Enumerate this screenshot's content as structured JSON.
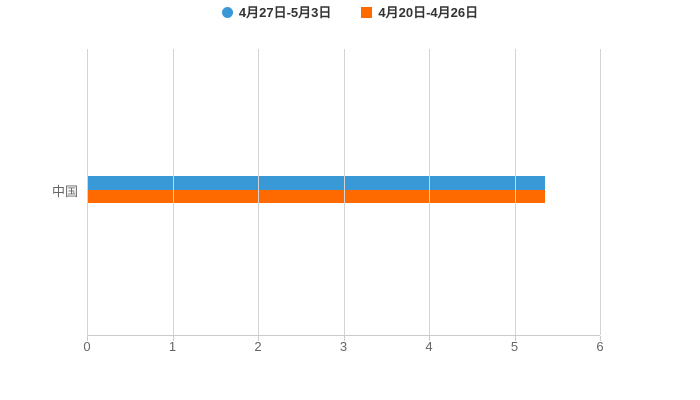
{
  "chart_data": {
    "type": "bar",
    "orientation": "horizontal",
    "title": "",
    "xlabel": "",
    "ylabel": "",
    "categories": [
      "中国"
    ],
    "series": [
      {
        "name": "4月27日-5月3日",
        "color": "#3899d6",
        "legend_marker": "circle",
        "values": [
          5.34
        ]
      },
      {
        "name": "4月20日-4月26日",
        "color": "#ff6a00",
        "legend_marker": "square",
        "values": [
          5.34
        ]
      }
    ],
    "xlim": [
      0,
      6
    ],
    "x_ticks": [
      "0",
      "1",
      "2",
      "3",
      "4",
      "5",
      "6"
    ],
    "grid": true,
    "legend_position": "top-center"
  },
  "colors": {
    "series_1": "#3899d6",
    "series_2": "#ff6a00",
    "gridline": "#d4d4d4",
    "axis_line": "#cccccc",
    "tick_label": "#666666",
    "legend_text": "#333333",
    "background": "#ffffff"
  }
}
